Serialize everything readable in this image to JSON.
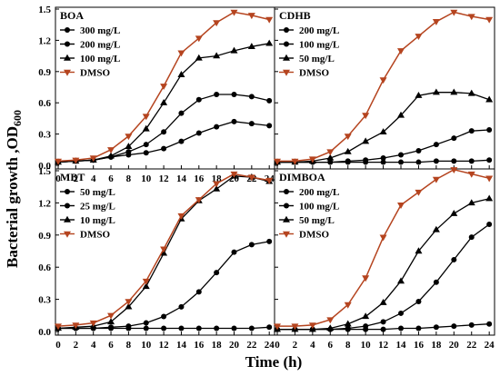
{
  "figure": {
    "ylabel_main": "Bacterial growth ,OD",
    "ylabel_sub": "600",
    "xlabel": "Time (h)"
  },
  "chart_data": [
    {
      "type": "line",
      "title": "BOA",
      "x": [
        0,
        2,
        4,
        6,
        8,
        10,
        12,
        14,
        16,
        18,
        20,
        22,
        24
      ],
      "xlim": [
        0,
        24.6
      ],
      "ylim": [
        0,
        1.5
      ],
      "yticks": [
        0.0,
        0.3,
        0.6,
        0.9,
        1.2,
        1.5
      ],
      "xticks": [
        0,
        2,
        4,
        6,
        8,
        10,
        12,
        14,
        16,
        18,
        20,
        22,
        24
      ],
      "series": [
        {
          "name": "300 mg/L",
          "marker": "circle",
          "color": "#000000",
          "values": [
            0.03,
            0.04,
            0.05,
            0.08,
            0.1,
            0.12,
            0.16,
            0.23,
            0.31,
            0.37,
            0.42,
            0.4,
            0.38
          ]
        },
        {
          "name": "200 mg/L",
          "marker": "circle",
          "color": "#000000",
          "values": [
            0.03,
            0.04,
            0.05,
            0.08,
            0.13,
            0.2,
            0.32,
            0.5,
            0.63,
            0.68,
            0.68,
            0.66,
            0.62
          ]
        },
        {
          "name": "100 mg/L",
          "marker": "triangle",
          "color": "#000000",
          "values": [
            0.03,
            0.04,
            0.05,
            0.09,
            0.18,
            0.35,
            0.6,
            0.87,
            1.03,
            1.05,
            1.1,
            1.14,
            1.17
          ]
        },
        {
          "name": "DMSO",
          "marker": "triangle-down",
          "color": "#b5441f",
          "values": [
            0.04,
            0.05,
            0.07,
            0.15,
            0.28,
            0.47,
            0.76,
            1.08,
            1.22,
            1.37,
            1.47,
            1.44,
            1.4
          ]
        }
      ]
    },
    {
      "type": "line",
      "title": "CDHB",
      "x": [
        0,
        2,
        4,
        6,
        8,
        10,
        12,
        14,
        16,
        18,
        20,
        22,
        24
      ],
      "xlim": [
        0,
        24.6
      ],
      "ylim": [
        0,
        1.5
      ],
      "series": [
        {
          "name": "200 mg/L",
          "marker": "circle",
          "color": "#000000",
          "values": [
            0.03,
            0.03,
            0.03,
            0.03,
            0.03,
            0.03,
            0.03,
            0.03,
            0.03,
            0.04,
            0.04,
            0.04,
            0.05
          ]
        },
        {
          "name": "100 mg/L",
          "marker": "circle",
          "color": "#000000",
          "values": [
            0.03,
            0.03,
            0.03,
            0.03,
            0.04,
            0.05,
            0.07,
            0.1,
            0.14,
            0.2,
            0.26,
            0.33,
            0.34
          ]
        },
        {
          "name": "50 mg/L",
          "marker": "triangle",
          "color": "#000000",
          "values": [
            0.03,
            0.03,
            0.04,
            0.07,
            0.13,
            0.23,
            0.32,
            0.48,
            0.67,
            0.7,
            0.7,
            0.69,
            0.63
          ]
        },
        {
          "name": "DMSO",
          "marker": "triangle-down",
          "color": "#b5441f",
          "values": [
            0.04,
            0.04,
            0.06,
            0.13,
            0.28,
            0.48,
            0.82,
            1.1,
            1.24,
            1.38,
            1.47,
            1.43,
            1.4
          ]
        }
      ]
    },
    {
      "type": "line",
      "title": "MBT",
      "x": [
        0,
        2,
        4,
        6,
        8,
        10,
        12,
        14,
        16,
        18,
        20,
        22,
        24
      ],
      "xlim": [
        0,
        24.6
      ],
      "ylim": [
        0,
        1.5
      ],
      "yticks": [
        0.0,
        0.3,
        0.6,
        0.9,
        1.2,
        1.5
      ],
      "xticks": [
        0,
        2,
        4,
        6,
        8,
        10,
        12,
        14,
        16,
        18,
        20,
        22,
        24
      ],
      "series": [
        {
          "name": "50 mg/L",
          "marker": "circle",
          "color": "#000000",
          "values": [
            0.03,
            0.03,
            0.03,
            0.03,
            0.03,
            0.03,
            0.03,
            0.03,
            0.03,
            0.03,
            0.03,
            0.03,
            0.04
          ]
        },
        {
          "name": "25 mg/L",
          "marker": "circle",
          "color": "#000000",
          "values": [
            0.03,
            0.03,
            0.03,
            0.04,
            0.05,
            0.08,
            0.14,
            0.23,
            0.37,
            0.55,
            0.74,
            0.81,
            0.84
          ]
        },
        {
          "name": "10 mg/L",
          "marker": "triangle",
          "color": "#000000",
          "values": [
            0.03,
            0.04,
            0.05,
            0.09,
            0.23,
            0.42,
            0.73,
            1.05,
            1.22,
            1.33,
            1.45,
            1.44,
            1.4
          ]
        },
        {
          "name": "DMSO",
          "marker": "triangle-down",
          "color": "#b5441f",
          "values": [
            0.05,
            0.06,
            0.08,
            0.15,
            0.28,
            0.47,
            0.77,
            1.08,
            1.23,
            1.38,
            1.47,
            1.44,
            1.41
          ]
        }
      ]
    },
    {
      "type": "line",
      "title": "DIMBOA",
      "x": [
        0,
        2,
        4,
        6,
        8,
        10,
        12,
        14,
        16,
        18,
        20,
        22,
        24
      ],
      "xlim": [
        0,
        24.6
      ],
      "ylim": [
        0,
        1.5
      ],
      "xticks": [
        0,
        2,
        4,
        6,
        8,
        10,
        12,
        14,
        16,
        18,
        20,
        22,
        24
      ],
      "series": [
        {
          "name": "200 mg/L",
          "marker": "circle",
          "color": "#000000",
          "values": [
            0.02,
            0.02,
            0.02,
            0.02,
            0.02,
            0.02,
            0.02,
            0.03,
            0.03,
            0.04,
            0.05,
            0.06,
            0.07
          ]
        },
        {
          "name": "100 mg/L",
          "marker": "circle",
          "color": "#000000",
          "values": [
            0.02,
            0.02,
            0.02,
            0.02,
            0.03,
            0.05,
            0.09,
            0.17,
            0.28,
            0.46,
            0.67,
            0.88,
            1.0
          ]
        },
        {
          "name": "50 mg/L",
          "marker": "triangle",
          "color": "#000000",
          "values": [
            0.02,
            0.02,
            0.02,
            0.03,
            0.07,
            0.14,
            0.27,
            0.47,
            0.75,
            0.95,
            1.1,
            1.2,
            1.24
          ]
        },
        {
          "name": "DMSO",
          "marker": "triangle-down",
          "color": "#b5441f",
          "values": [
            0.05,
            0.05,
            0.06,
            0.11,
            0.25,
            0.5,
            0.88,
            1.18,
            1.3,
            1.42,
            1.51,
            1.47,
            1.43
          ]
        }
      ]
    }
  ]
}
